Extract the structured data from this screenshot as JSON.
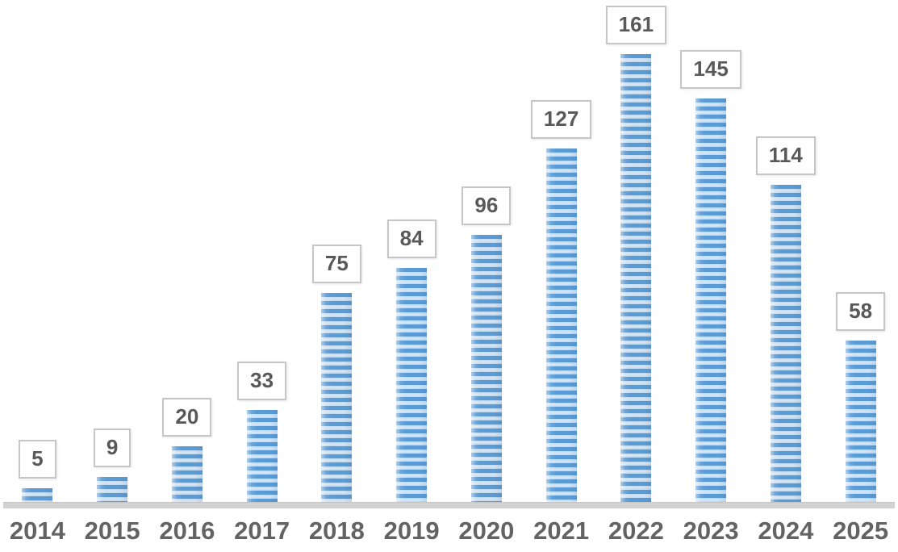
{
  "chart_data": {
    "type": "bar",
    "categories": [
      "2014",
      "2015",
      "2016",
      "2017",
      "2018",
      "2019",
      "2020",
      "2021",
      "2022",
      "2023",
      "2024",
      "2025"
    ],
    "values": [
      5,
      9,
      20,
      33,
      75,
      84,
      96,
      127,
      161,
      145,
      114,
      58
    ],
    "title": "",
    "xlabel": "",
    "ylabel": "",
    "ylim": [
      0,
      170
    ],
    "grid": false,
    "legend": false,
    "data_labels": true,
    "data_label_style": "boxed",
    "colors": {
      "bar_stripe_dark": "#5b9bd5",
      "bar_stripe_light": "#c7ddf2",
      "axis_line": "#d2d2d2",
      "label_box_border": "#c6c6c6",
      "label_box_background": "#ffffff",
      "label_text": "#595959",
      "year_text": "#636363",
      "background": "#ffffff"
    }
  }
}
